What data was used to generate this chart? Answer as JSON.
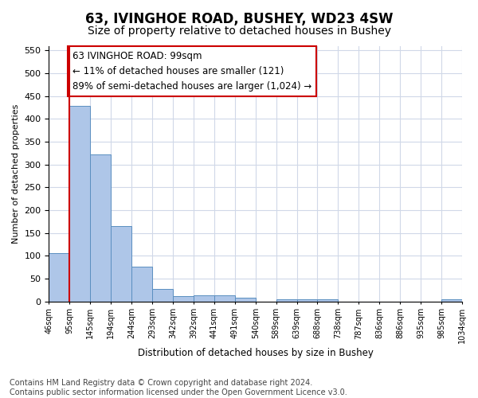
{
  "title": "63, IVINGHOE ROAD, BUSHEY, WD23 4SW",
  "subtitle": "Size of property relative to detached houses in Bushey",
  "xlabel": "Distribution of detached houses by size in Bushey",
  "ylabel": "Number of detached properties",
  "bin_labels": [
    "46sqm",
    "95sqm",
    "145sqm",
    "194sqm",
    "244sqm",
    "293sqm",
    "342sqm",
    "392sqm",
    "441sqm",
    "491sqm",
    "540sqm",
    "589sqm",
    "639sqm",
    "688sqm",
    "738sqm",
    "787sqm",
    "836sqm",
    "886sqm",
    "935sqm",
    "985sqm",
    "1034sqm"
  ],
  "bar_values": [
    105,
    428,
    322,
    165,
    76,
    27,
    11,
    13,
    13,
    8,
    0,
    5,
    5,
    4,
    0,
    0,
    0,
    0,
    0,
    5
  ],
  "bar_color": "#aec6e8",
  "bar_edge_color": "#5a8fc0",
  "vline_x": 1,
  "vline_color": "#cc0000",
  "annotation_text": "63 IVINGHOE ROAD: 99sqm\n← 11% of detached houses are smaller (121)\n89% of semi-detached houses are larger (1,024) →",
  "annotation_box_color": "#ffffff",
  "annotation_box_edge_color": "#cc0000",
  "ylim": [
    0,
    560
  ],
  "yticks": [
    0,
    50,
    100,
    150,
    200,
    250,
    300,
    350,
    400,
    450,
    500,
    550
  ],
  "footnote": "Contains HM Land Registry data © Crown copyright and database right 2024.\nContains public sector information licensed under the Open Government Licence v3.0.",
  "bg_color": "#ffffff",
  "grid_color": "#d0d8e8",
  "title_fontsize": 12,
  "subtitle_fontsize": 10,
  "annotation_fontsize": 8.5,
  "footnote_fontsize": 7
}
